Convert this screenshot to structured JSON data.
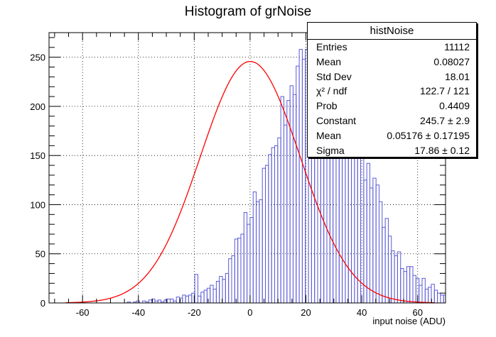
{
  "chart_data": {
    "type": "histogram",
    "title": "Histogram of grNoise",
    "xlabel": "input noise (ADU)",
    "ylabel": "",
    "xlim": [
      -72,
      70
    ],
    "ylim": [
      0,
      275
    ],
    "xticks": [
      -60,
      -40,
      -20,
      0,
      20,
      40,
      60
    ],
    "yticks": [
      0,
      50,
      100,
      150,
      200,
      250
    ],
    "grid": true,
    "bin_width": 1.1,
    "bins_start": -66,
    "counts": [
      0,
      0,
      0,
      0,
      0,
      0,
      0,
      0,
      0,
      0,
      0,
      0,
      0,
      0,
      0,
      0,
      0,
      0,
      0,
      0,
      1,
      0,
      1,
      2,
      0,
      2,
      1,
      3,
      4,
      2,
      3,
      1,
      3,
      4,
      4,
      2,
      6,
      5,
      8,
      7,
      8,
      10,
      29,
      7,
      11,
      13,
      15,
      18,
      14,
      22,
      27,
      24,
      30,
      45,
      48,
      65,
      66,
      70,
      92,
      80,
      87,
      113,
      103,
      105,
      137,
      140,
      151,
      158,
      160,
      168,
      210,
      181,
      206,
      221,
      212,
      241,
      258,
      248,
      258,
      257,
      262,
      258,
      246,
      240,
      215,
      227,
      257,
      261,
      195,
      207,
      215,
      208,
      232,
      180,
      193,
      170,
      155,
      125,
      142,
      117,
      127,
      120,
      103,
      77,
      86,
      68,
      53,
      48,
      52,
      35,
      32,
      37,
      37,
      28,
      25,
      18,
      25,
      14,
      16,
      19,
      13,
      10,
      8,
      8,
      9,
      8,
      7,
      2,
      3,
      3,
      2,
      2,
      1,
      0,
      1,
      0,
      0,
      0,
      0,
      0
    ],
    "fit": {
      "function": "gaus",
      "constant": 245.7,
      "mean": 0.05176,
      "sigma": 17.86,
      "color": "#ff0000"
    },
    "histogram_color": "#5b5bd6"
  },
  "stats": {
    "name": "histNoise",
    "rows": [
      {
        "label": "Entries",
        "value": "11112"
      },
      {
        "label": "Mean",
        "value": "0.08027"
      },
      {
        "label": "Std Dev",
        "value": "18.01"
      },
      {
        "label": "χ² / ndf",
        "value": "122.7 / 121"
      },
      {
        "label": "Prob",
        "value": "0.4409"
      },
      {
        "label": "Constant",
        "value": "245.7 ± 2.9"
      },
      {
        "label": "Mean",
        "value": "0.05176 ± 0.17195"
      },
      {
        "label": "Sigma",
        "value": "17.86 ± 0.12"
      }
    ]
  }
}
